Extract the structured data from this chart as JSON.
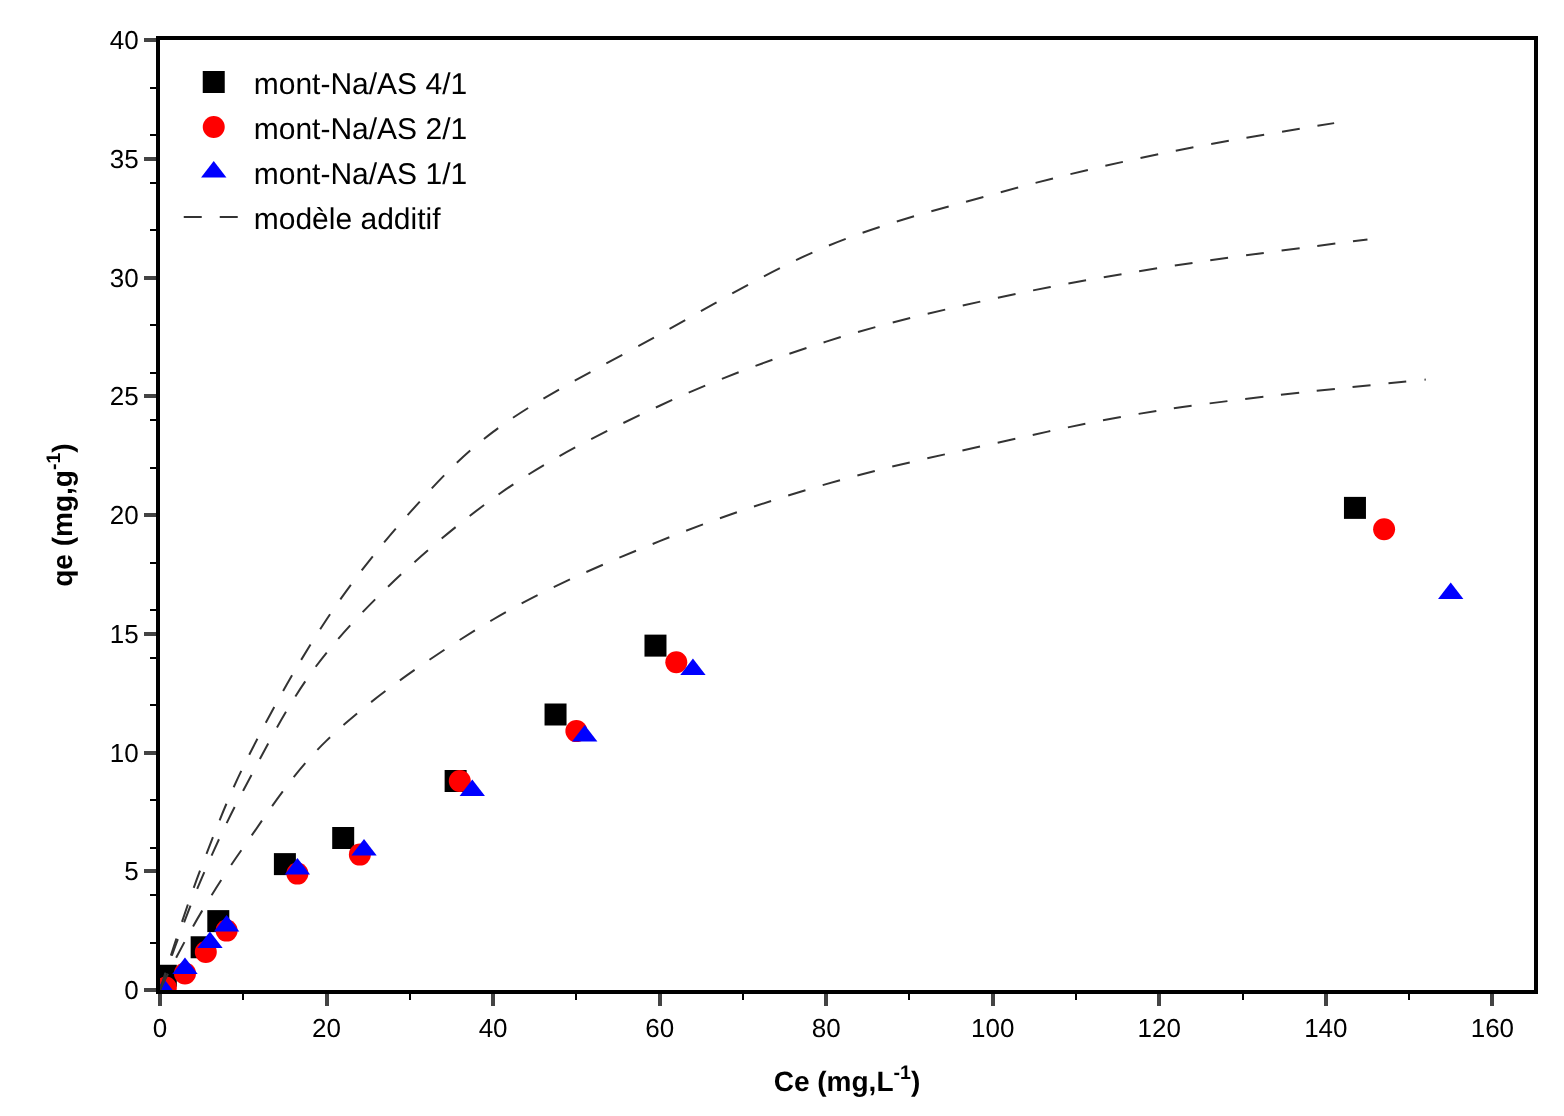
{
  "chart_data": {
    "type": "scatter",
    "xlabel": "Ce (mg,L$^{-1}$)",
    "ylabel": "qe (mg,g$^{-1}$)",
    "xlim": [
      0,
      165
    ],
    "ylim": [
      0,
      40
    ],
    "xticks": [
      0,
      20,
      40,
      60,
      80,
      100,
      120,
      140,
      160
    ],
    "yticks": [
      0,
      5,
      10,
      15,
      20,
      25,
      30,
      35,
      40
    ],
    "legend": "top left",
    "series": [
      {
        "name": "mont-Na/AS 4/1",
        "color": "#000000",
        "marker": "square",
        "x": [
          0.7,
          5,
          7,
          15,
          22,
          35.5,
          47.5,
          59.5,
          143.5
        ],
        "values": [
          0.6,
          1.8,
          2.9,
          5.3,
          6.4,
          8.8,
          11.6,
          14.5,
          20.3
        ]
      },
      {
        "name": "mont-Na/AS 2/1",
        "color": "#ff0000",
        "marker": "circle",
        "x": [
          0.7,
          3,
          5.5,
          8,
          16.5,
          24,
          36,
          50,
          62,
          147
        ],
        "values": [
          0.1,
          0.7,
          1.6,
          2.5,
          4.9,
          5.7,
          8.8,
          10.9,
          13.8,
          19.4
        ]
      },
      {
        "name": "mont-Na/AS 1/1",
        "color": "#0000ff",
        "marker": "triangle",
        "x": [
          0.5,
          3,
          6,
          8,
          16.5,
          24.5,
          37.5,
          51,
          64,
          155
        ],
        "values": [
          0,
          0.9,
          2.0,
          2.7,
          5.1,
          5.9,
          8.4,
          10.7,
          13.5,
          16.7
        ]
      },
      {
        "name": "modèle additif",
        "type": "line",
        "line_style": "dashed",
        "marker": "none",
        "color": "#333333",
        "x": [
          0,
          2,
          5,
          10,
          20,
          30,
          40,
          60,
          80,
          100,
          120,
          141
        ],
        "values": [
          0,
          2.2,
          5.2,
          9.4,
          15.6,
          20.1,
          23.5,
          27.6,
          31.3,
          33.5,
          35.2,
          36.5
        ]
      },
      {
        "type": "line",
        "line_style": "dashed",
        "marker": "none",
        "color": "#333333",
        "x": [
          0,
          2,
          5,
          10,
          20,
          40,
          60,
          80,
          100,
          120,
          145
        ],
        "values": [
          0,
          2.0,
          4.7,
          8.4,
          14.2,
          20.7,
          24.6,
          27.3,
          29.1,
          30.4,
          31.6
        ]
      },
      {
        "type": "line",
        "line_style": "dashed",
        "marker": "none",
        "color": "#333333",
        "x": [
          0,
          2,
          5,
          10,
          20,
          40,
          60,
          80,
          100,
          120,
          152
        ],
        "values": [
          0,
          1.4,
          3.3,
          6.0,
          10.5,
          15.6,
          18.9,
          21.3,
          23.0,
          24.4,
          25.7
        ]
      }
    ]
  }
}
